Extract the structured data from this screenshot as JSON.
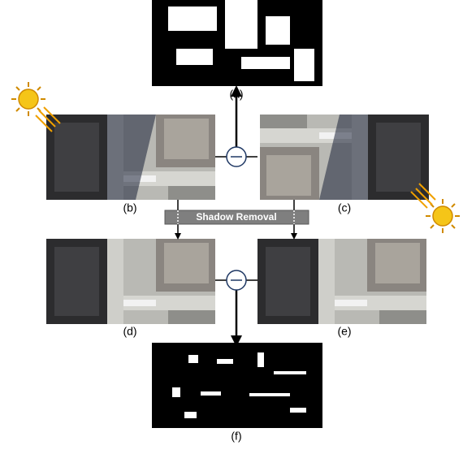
{
  "panels": [
    {
      "label": "(a)"
    },
    {
      "label": "(b)"
    },
    {
      "label": "(c)"
    },
    {
      "label": "(d)"
    },
    {
      "label": "(e)"
    },
    {
      "label": "(f)"
    }
  ],
  "process": {
    "label": "Shadow Removal"
  }
}
